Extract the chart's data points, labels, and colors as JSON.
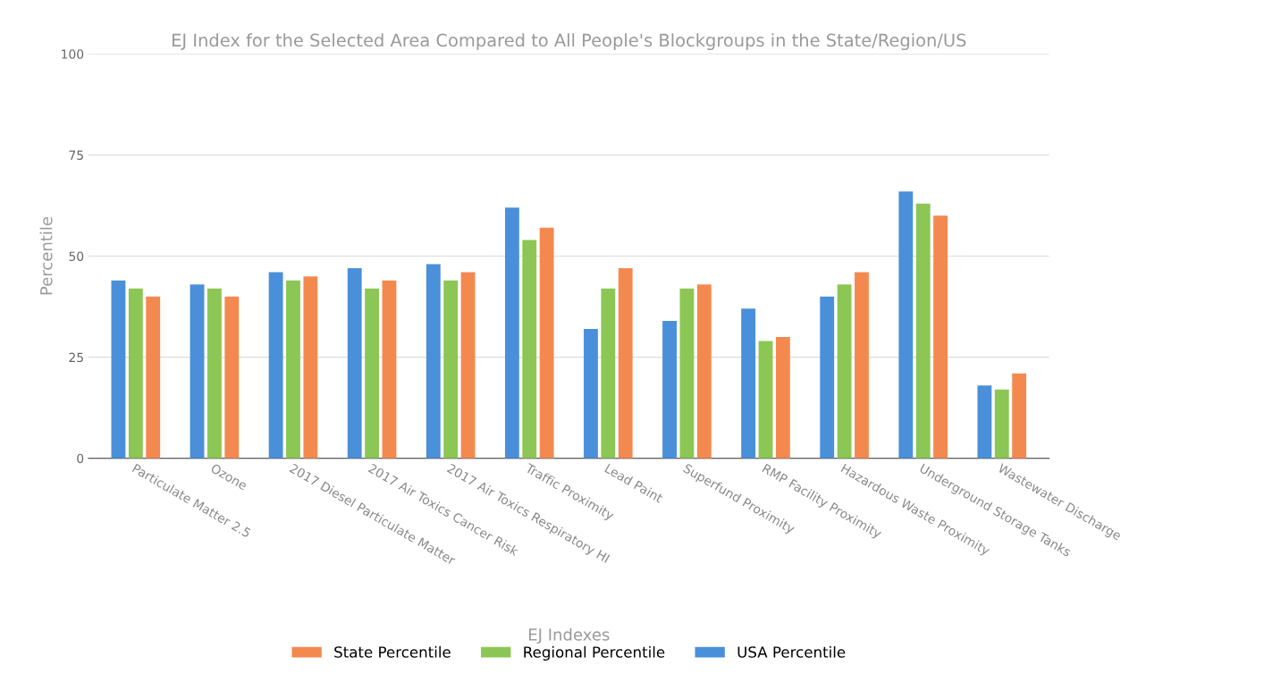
{
  "chart_data": {
    "type": "bar",
    "title": "EJ Index for the Selected Area Compared to All People's Blockgroups in the State/Region/US",
    "xlabel": "EJ Indexes",
    "ylabel": "Percentile",
    "categories": [
      "Particulate Matter 2.5",
      "Ozone",
      "2017 Diesel Particulate Matter",
      "2017 Air Toxics Cancer Risk",
      "2017 Air Toxics Respiratory HI",
      "Traffic Proximity",
      "Lead Paint",
      "Superfund Proximity",
      "RMP Facility Proximity",
      "Hazardous Waste Proximity",
      "Underground Storage Tanks",
      "Wastewater Discharge"
    ],
    "series": [
      {
        "name": "USA Percentile",
        "color": "#4a8fd9",
        "values": [
          44,
          43,
          46,
          47,
          48,
          62,
          32,
          34,
          37,
          40,
          66,
          18
        ]
      },
      {
        "name": "Regional Percentile",
        "color": "#8cc654",
        "values": [
          42,
          42,
          44,
          42,
          44,
          54,
          42,
          42,
          29,
          43,
          63,
          17
        ]
      },
      {
        "name": "State Percentile",
        "color": "#f4894f",
        "values": [
          40,
          40,
          45,
          44,
          46,
          57,
          47,
          43,
          30,
          46,
          60,
          21
        ]
      }
    ],
    "ylim": [
      0,
      100
    ],
    "yticks": [
      0,
      25,
      50,
      75,
      100
    ],
    "grid": "y",
    "legend": "bottom"
  }
}
